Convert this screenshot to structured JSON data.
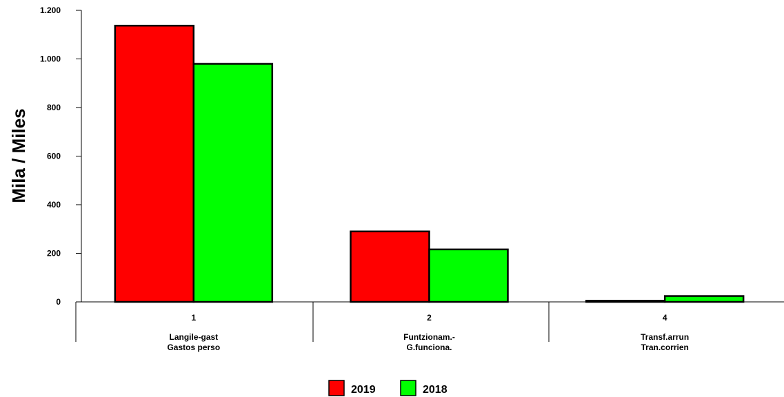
{
  "chart_data": {
    "type": "bar",
    "ylabel": "Mila / Miles",
    "ylim": [
      0,
      1200
    ],
    "yticks": [
      {
        "value": 0,
        "label": "0"
      },
      {
        "value": 200,
        "label": "200"
      },
      {
        "value": 400,
        "label": "400"
      },
      {
        "value": 600,
        "label": "600"
      },
      {
        "value": 800,
        "label": "800"
      },
      {
        "value": 1000,
        "label": "1.000"
      },
      {
        "value": 1200,
        "label": "1.200"
      }
    ],
    "categories": [
      {
        "code": "1",
        "line1": "Langile-gast",
        "line2": "Gastos perso"
      },
      {
        "code": "2",
        "line1": "Funtzionam.-",
        "line2": "G.funciona."
      },
      {
        "code": "4",
        "line1": "Transf.arrun",
        "line2": "Tran.corrien"
      }
    ],
    "series": [
      {
        "name": "2019",
        "color": "#ff0000",
        "values": [
          1137,
          290,
          5
        ]
      },
      {
        "name": "2018",
        "color": "#00ff00",
        "values": [
          980,
          216,
          24
        ]
      }
    ],
    "legend_position": "bottom-center",
    "grid": false
  }
}
